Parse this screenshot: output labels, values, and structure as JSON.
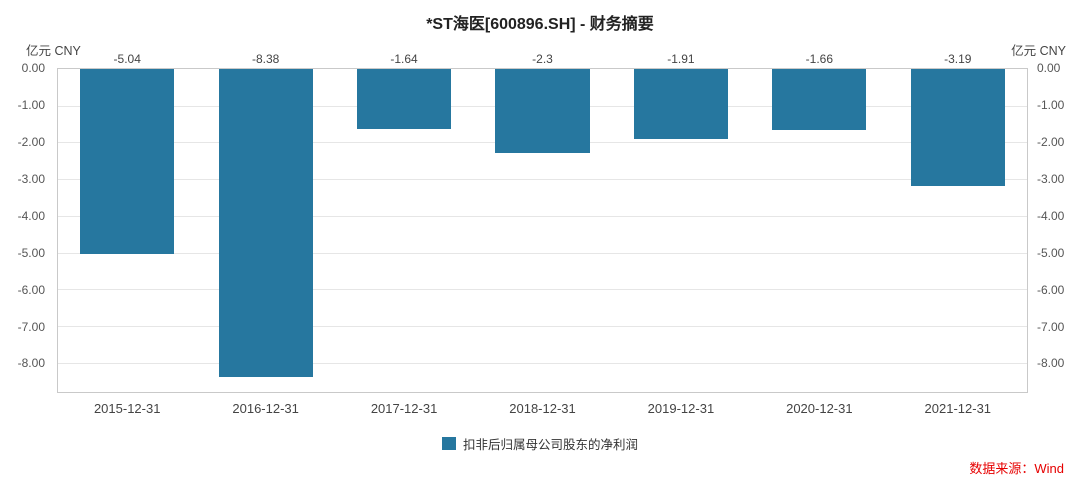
{
  "title": "*ST海医[600896.SH] - 财务摘要",
  "axis_unit_left": "亿元 CNY",
  "axis_unit_right": "亿元 CNY",
  "source": "数据来源：Wind",
  "colors": {
    "bar": "#26779F",
    "source_text": "#e60000"
  },
  "chart_data": {
    "type": "bar",
    "title": "*ST海医[600896.SH] - 财务摘要",
    "categories": [
      "2015-12-31",
      "2016-12-31",
      "2017-12-31",
      "2018-12-31",
      "2019-12-31",
      "2020-12-31",
      "2021-12-31"
    ],
    "series": [
      {
        "name": "扣非后归属母公司股东的净利润",
        "values": [
          -5.04,
          -8.38,
          -1.64,
          -2.3,
          -1.91,
          -1.66,
          -3.19
        ]
      }
    ],
    "data_labels": [
      "-5.04",
      "-8.38",
      "-1.64",
      "-2.3",
      "-1.91",
      "-1.66",
      "-3.19"
    ],
    "ylabel": "亿元 CNY",
    "ylim": [
      -8.8,
      0
    ],
    "yticks": [
      0,
      -1,
      -2,
      -3,
      -4,
      -5,
      -6,
      -7,
      -8
    ],
    "ytick_labels": [
      "0.00",
      "-1.00",
      "-2.00",
      "-3.00",
      "-4.00",
      "-5.00",
      "-6.00",
      "-7.00",
      "-8.00"
    ],
    "grid": true,
    "legend_position": "bottom",
    "bar_color": "#26779F"
  }
}
